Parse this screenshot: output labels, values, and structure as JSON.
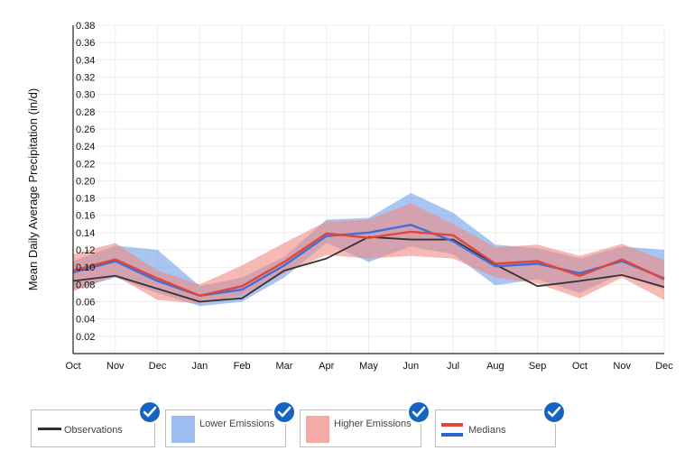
{
  "chart_data": {
    "type": "area",
    "ylabel": "Mean Daily Average Precipitation (in/d)",
    "xlabel": "",
    "categories": [
      "Oct",
      "Nov",
      "Dec",
      "Jan",
      "Feb",
      "Mar",
      "Apr",
      "May",
      "Jun",
      "Jul",
      "Aug",
      "Sep",
      "Oct",
      "Nov",
      "Dec"
    ],
    "ylim": [
      0,
      0.38
    ],
    "yticks": [
      "0.02",
      "0.04",
      "0.06",
      "0.08",
      "0.10",
      "0.12",
      "0.14",
      "0.16",
      "0.18",
      "0.20",
      "0.22",
      "0.24",
      "0.26",
      "0.28",
      "0.30",
      "0.32",
      "0.34",
      "0.36",
      "0.38"
    ],
    "grid": true,
    "series": [
      {
        "name": "Observations",
        "kind": "line",
        "color": "#333333",
        "values": [
          0.084,
          0.09,
          0.075,
          0.06,
          0.064,
          0.096,
          0.11,
          0.135,
          0.132,
          0.132,
          0.103,
          0.078,
          0.084,
          0.091,
          0.077
        ]
      },
      {
        "name": "Lower Emissions",
        "kind": "band",
        "color": "#6f9ee8",
        "upper": [
          0.107,
          0.125,
          0.12,
          0.078,
          0.088,
          0.112,
          0.155,
          0.157,
          0.186,
          0.163,
          0.126,
          0.122,
          0.11,
          0.124,
          0.12
        ],
        "lower": [
          0.074,
          0.088,
          0.07,
          0.055,
          0.06,
          0.088,
          0.128,
          0.106,
          0.124,
          0.115,
          0.079,
          0.086,
          0.07,
          0.093,
          0.074
        ]
      },
      {
        "name": "Higher Emissions",
        "kind": "band",
        "color": "#f28b82",
        "upper": [
          0.115,
          0.128,
          0.096,
          0.08,
          0.102,
          0.128,
          0.153,
          0.155,
          0.174,
          0.15,
          0.123,
          0.126,
          0.113,
          0.127,
          0.108
        ],
        "lower": [
          0.072,
          0.09,
          0.062,
          0.058,
          0.067,
          0.093,
          0.114,
          0.11,
          0.113,
          0.11,
          0.088,
          0.081,
          0.064,
          0.088,
          0.062
        ]
      },
      {
        "name": "Lower Emissions Median",
        "kind": "line",
        "color": "#3f6fd8",
        "values": [
          0.094,
          0.107,
          0.084,
          0.067,
          0.074,
          0.102,
          0.136,
          0.14,
          0.149,
          0.13,
          0.101,
          0.104,
          0.093,
          0.107,
          0.087
        ]
      },
      {
        "name": "Higher Emissions Median",
        "kind": "line",
        "color": "#e0453a",
        "values": [
          0.096,
          0.109,
          0.087,
          0.067,
          0.078,
          0.106,
          0.139,
          0.134,
          0.141,
          0.137,
          0.104,
          0.107,
          0.09,
          0.109,
          0.086
        ]
      }
    ]
  },
  "legend": {
    "observations": "Observations",
    "lower_emissions": "Lower Emissions",
    "higher_emissions": "Higher Emissions",
    "medians": "Medians"
  },
  "colors": {
    "check": "#1565c0",
    "lower_swatch": "#9dbdf0",
    "higher_swatch": "#f6aca6",
    "median_red": "#e0453a",
    "median_blue": "#2a62d0"
  }
}
